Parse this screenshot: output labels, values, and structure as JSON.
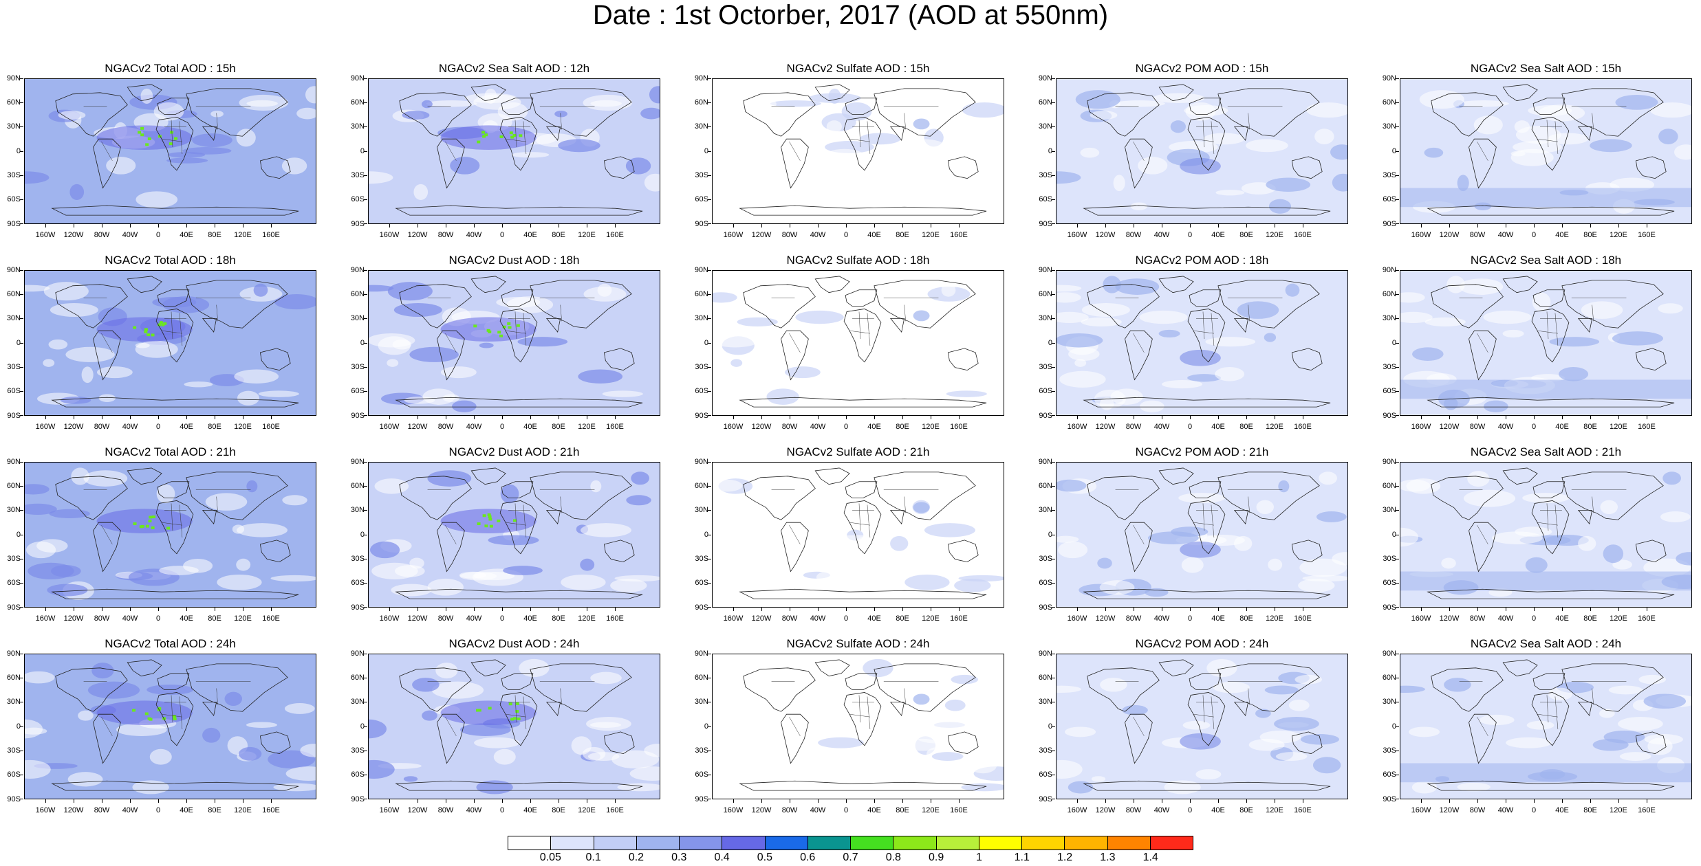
{
  "title": "Date : 1st Octorber, 2017 (AOD at 550nm)",
  "lat_labels": [
    "90N",
    "60N",
    "30N",
    "0",
    "30S",
    "60S",
    "90S"
  ],
  "lon_labels": [
    "160W",
    "120W",
    "80W",
    "40W",
    "0",
    "40E",
    "80E",
    "120E",
    "160E"
  ],
  "species": [
    {
      "key": "total",
      "fill": "#a0b4ee",
      "patch": "#7c8ce8",
      "hotspot": "#6be81e"
    },
    {
      "key": "dust",
      "fill": "#c9d3f7",
      "patch": "#7c8ce8",
      "hotspot": "#6be81e"
    },
    {
      "key": "sulfate",
      "fill": "#ffffff",
      "patch": "#c9d3f7",
      "hotspot": "#a0b4ee"
    },
    {
      "key": "pom",
      "fill": "#dde4fb",
      "patch": "#a0b4ee",
      "hotspot": "#7c8ce8"
    },
    {
      "key": "seasalt",
      "fill": "#dde4fb",
      "patch": "#a0b4ee",
      "hotspot": "#7c8ce8"
    }
  ],
  "panels": [
    {
      "title": "NGACv2 Total AOD : 15h"
    },
    {
      "title": "NGACv2 Sea Salt  AOD : 12h"
    },
    {
      "title": "NGACv2 Sulfate AOD : 15h"
    },
    {
      "title": "NGACv2 POM AOD : 15h"
    },
    {
      "title": "NGACv2 Sea Salt AOD : 15h"
    },
    {
      "title": "NGACv2 Total AOD : 18h"
    },
    {
      "title": "NGACv2 Dust AOD : 18h"
    },
    {
      "title": "NGACv2 Sulfate AOD : 18h"
    },
    {
      "title": "NGACv2 POM AOD : 18h"
    },
    {
      "title": "NGACv2 Sea Salt AOD : 18h"
    },
    {
      "title": "NGACv2 Total AOD : 21h"
    },
    {
      "title": "NGACv2 Dust AOD : 21h"
    },
    {
      "title": "NGACv2 Sulfate AOD : 21h"
    },
    {
      "title": "NGACv2 POM AOD : 21h"
    },
    {
      "title": "NGACv2 Sea Salt AOD : 21h"
    },
    {
      "title": "NGACv2 Total AOD : 24h"
    },
    {
      "title": "NGACv2 Dust AOD : 24h"
    },
    {
      "title": "NGACv2 Sulfate AOD : 24h"
    },
    {
      "title": "NGACv2 POM AOD : 24h"
    },
    {
      "title": "NGACv2 Sea Salt  AOD : 24h"
    }
  ],
  "colorbar": {
    "colors": [
      "#ffffff",
      "#dde4fb",
      "#c2cef6",
      "#a0b4ee",
      "#8595ea",
      "#6669e6",
      "#1a6ae8",
      "#0a9490",
      "#45e020",
      "#8de81a",
      "#b8f03a",
      "#ffff00",
      "#ffd400",
      "#ffb400",
      "#ff8400",
      "#ff2a1a"
    ],
    "labels": [
      "0.05",
      "0.1",
      "0.2",
      "0.3",
      "0.4",
      "0.5",
      "0.6",
      "0.7",
      "0.8",
      "0.9",
      "1",
      "1.1",
      "1.2",
      "1.3",
      "1.4"
    ]
  }
}
